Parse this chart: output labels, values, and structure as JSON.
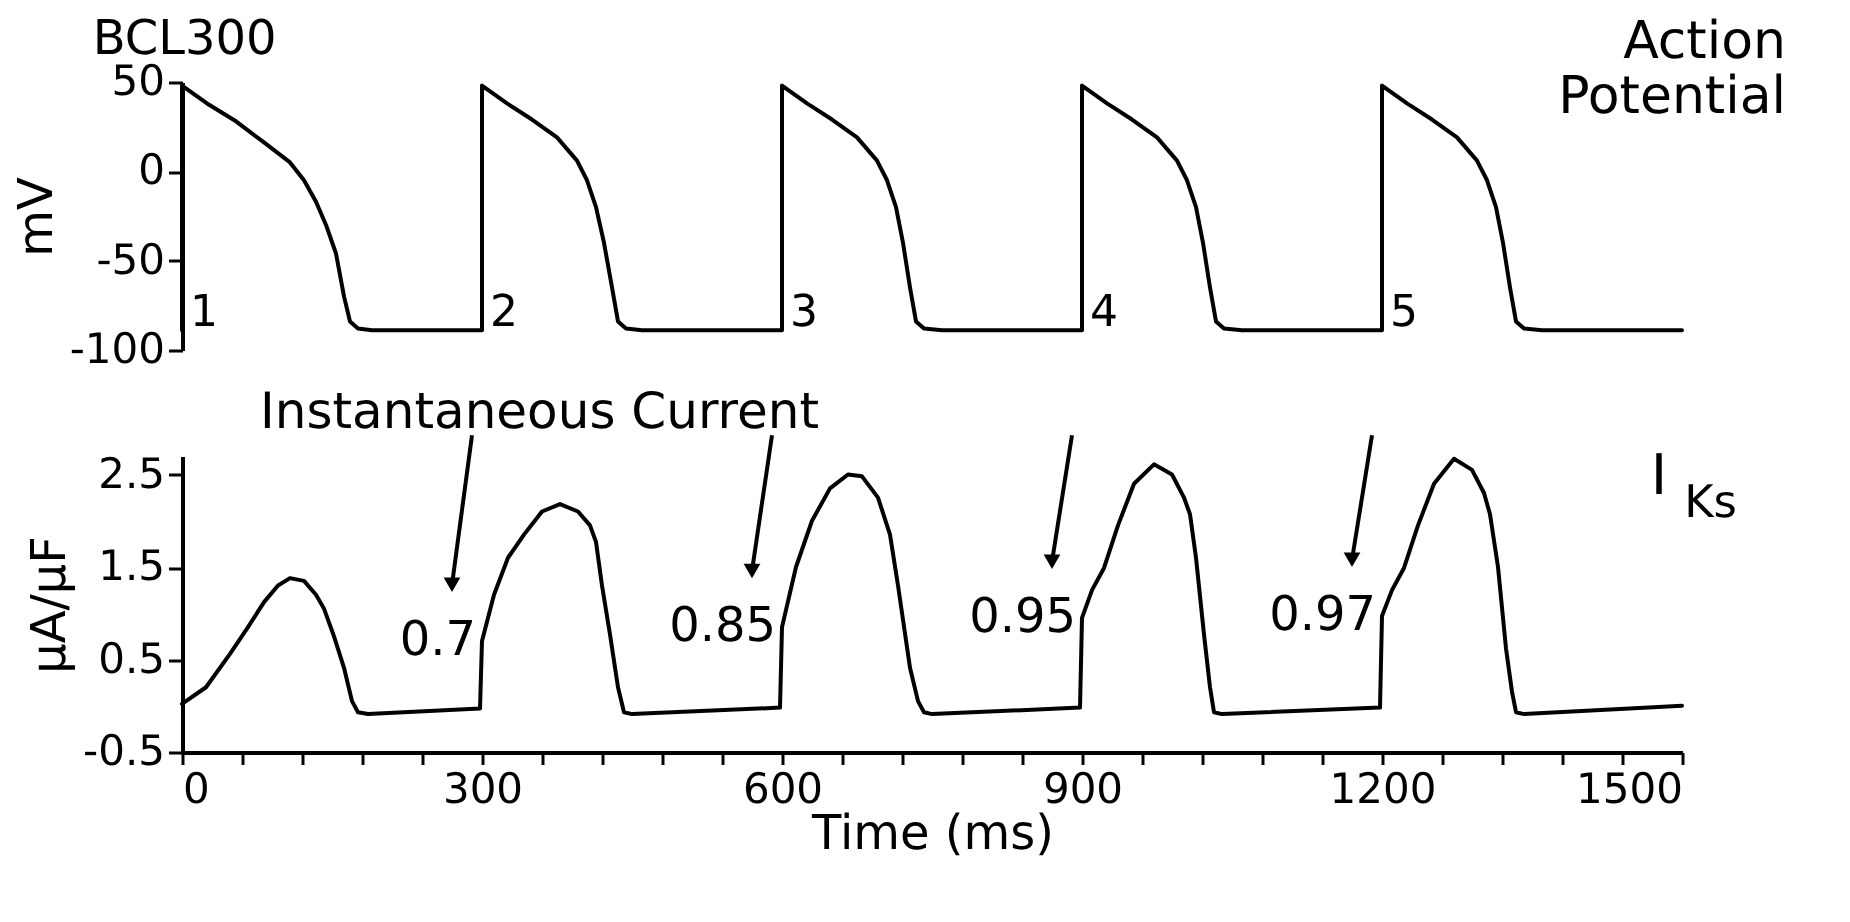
{
  "chart_data": [
    {
      "type": "line",
      "title": "BCL300",
      "ylabel": "mV",
      "xlim": [
        0,
        1500
      ],
      "ylim": [
        -100,
        50
      ],
      "yticks": [
        -100,
        -50,
        0,
        50
      ],
      "tick_labels": "y",
      "annotations": [
        "Action Potential",
        {
          "text": "1",
          "x": 0,
          "y": -89
        },
        {
          "text": "2",
          "x": 300,
          "y": -89
        },
        {
          "text": "3",
          "x": 600,
          "y": -89
        },
        {
          "text": "4",
          "x": 900,
          "y": -89
        },
        {
          "text": "5",
          "x": 1200,
          "y": -89
        }
      ],
      "series": [
        {
          "color": "#000000",
          "x": [
            0,
            0,
            25,
            54,
            80,
            108,
            122,
            134,
            144,
            154,
            162,
            168,
            176,
            190,
            300,
            300,
            325,
            350,
            375,
            395,
            405,
            414,
            422,
            430,
            436,
            444,
            460,
            600,
            600,
            625,
            650,
            675,
            695,
            705,
            714,
            721,
            728,
            734,
            742,
            760,
            900,
            900,
            925,
            950,
            975,
            995,
            1005,
            1014,
            1021,
            1028,
            1034,
            1042,
            1060,
            1200,
            1200,
            1225,
            1250,
            1275,
            1295,
            1305,
            1314,
            1321,
            1328,
            1334,
            1342,
            1360,
            1500
          ],
          "values": [
            -89,
            48,
            38,
            28,
            17,
            5,
            -5,
            -17,
            -30,
            -46,
            -70,
            -84,
            -88,
            -89,
            -89,
            48,
            38,
            29,
            19,
            6,
            -5,
            -20,
            -40,
            -65,
            -84,
            -88,
            -89,
            -89,
            48,
            38,
            29,
            19,
            6,
            -5,
            -20,
            -40,
            -65,
            -84,
            -88,
            -89,
            -89,
            48,
            38,
            29,
            19,
            6,
            -5,
            -20,
            -40,
            -65,
            -84,
            -88,
            -89,
            -89,
            48,
            38,
            29,
            19,
            6,
            -5,
            -20,
            -40,
            -65,
            -84,
            -88,
            -89,
            -89
          ]
        }
      ]
    },
    {
      "type": "line",
      "xlabel": "Time (ms)",
      "ylabel": "μA/μF",
      "xlim": [
        0,
        1500
      ],
      "ylim": [
        -0.5,
        2.7
      ],
      "xticks": [
        0,
        {
          "value": 60,
          "label": null
        },
        {
          "value": 120,
          "label": null
        },
        {
          "value": 180,
          "label": null
        },
        {
          "value": 240,
          "label": null
        },
        300,
        {
          "value": 360,
          "label": null
        },
        {
          "value": 420,
          "label": null
        },
        {
          "value": 480,
          "label": null
        },
        {
          "value": 540,
          "label": null
        },
        600,
        {
          "value": 660,
          "label": null
        },
        {
          "value": 720,
          "label": null
        },
        {
          "value": 780,
          "label": null
        },
        {
          "value": 840,
          "label": null
        },
        900,
        {
          "value": 960,
          "label": null
        },
        {
          "value": 1020,
          "label": null
        },
        {
          "value": 1080,
          "label": null
        },
        {
          "value": 1140,
          "label": null
        },
        1200,
        {
          "value": 1260,
          "label": null
        },
        {
          "value": 1320,
          "label": null
        },
        {
          "value": 1380,
          "label": null
        },
        {
          "value": 1440,
          "label": null
        },
        1500
      ],
      "yticks": [
        -0.5,
        0.5,
        1.5,
        2.5
      ],
      "annotations": [
        "I$_{Ks}$",
        "Instantaneous Current",
        {
          "text": "0.7",
          "x": 300,
          "y": 0.7
        },
        {
          "text": "0.85",
          "x": 600,
          "y": 0.85
        },
        {
          "text": "0.95",
          "x": 900,
          "y": 0.95
        },
        {
          "text": "0.97",
          "x": 1200,
          "y": 0.97
        }
      ],
      "series": [
        {
          "color": "#000000",
          "x": [
            0,
            24,
            48,
            66,
            82,
            96,
            108,
            122,
            134,
            142,
            152,
            162,
            170,
            176,
            186,
            298,
            300,
            312,
            326,
            342,
            360,
            378,
            396,
            408,
            414,
            420,
            428,
            436,
            442,
            450,
            598,
            600,
            614,
            630,
            648,
            666,
            680,
            696,
            708,
            716,
            728,
            736,
            742,
            750,
            898,
            900,
            910,
            922,
            936,
            952,
            972,
            990,
            1002,
            1008,
            1014,
            1022,
            1028,
            1032,
            1040,
            1198,
            1200,
            1210,
            1222,
            1236,
            1252,
            1272,
            1290,
            1302,
            1308,
            1316,
            1324,
            1330,
            1334,
            1342,
            1500
          ],
          "values": [
            0.02,
            0.2,
            0.56,
            0.85,
            1.12,
            1.3,
            1.38,
            1.35,
            1.2,
            1.05,
            0.75,
            0.41,
            0.05,
            -0.07,
            -0.09,
            -0.03,
            0.7,
            1.2,
            1.6,
            1.85,
            2.1,
            2.18,
            2.1,
            1.95,
            1.77,
            1.3,
            0.77,
            0.2,
            -0.07,
            -0.09,
            -0.02,
            0.85,
            1.5,
            2.0,
            2.35,
            2.5,
            2.48,
            2.25,
            1.85,
            1.3,
            0.41,
            0.05,
            -0.07,
            -0.09,
            -0.02,
            0.95,
            1.25,
            1.49,
            1.95,
            2.4,
            2.61,
            2.5,
            2.25,
            2.07,
            1.6,
            0.77,
            0.2,
            -0.07,
            -0.09,
            -0.02,
            0.97,
            1.25,
            1.49,
            1.95,
            2.4,
            2.67,
            2.55,
            2.3,
            2.07,
            1.5,
            0.62,
            0.15,
            -0.07,
            -0.09,
            0.0
          ]
        }
      ]
    }
  ]
}
